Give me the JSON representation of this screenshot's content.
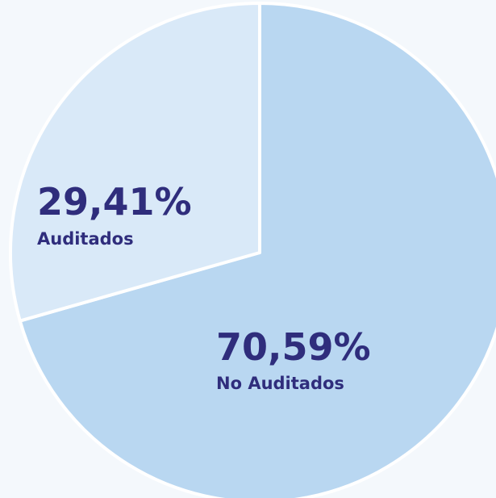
{
  "chart_data": {
    "type": "pie",
    "categories": [
      "No Auditados",
      "Auditados"
    ],
    "values": [
      70.59,
      29.41
    ],
    "value_labels": [
      "70,59%",
      "29,41%"
    ],
    "colors": [
      "#b9d7f1",
      "#d9e9f8"
    ]
  }
}
